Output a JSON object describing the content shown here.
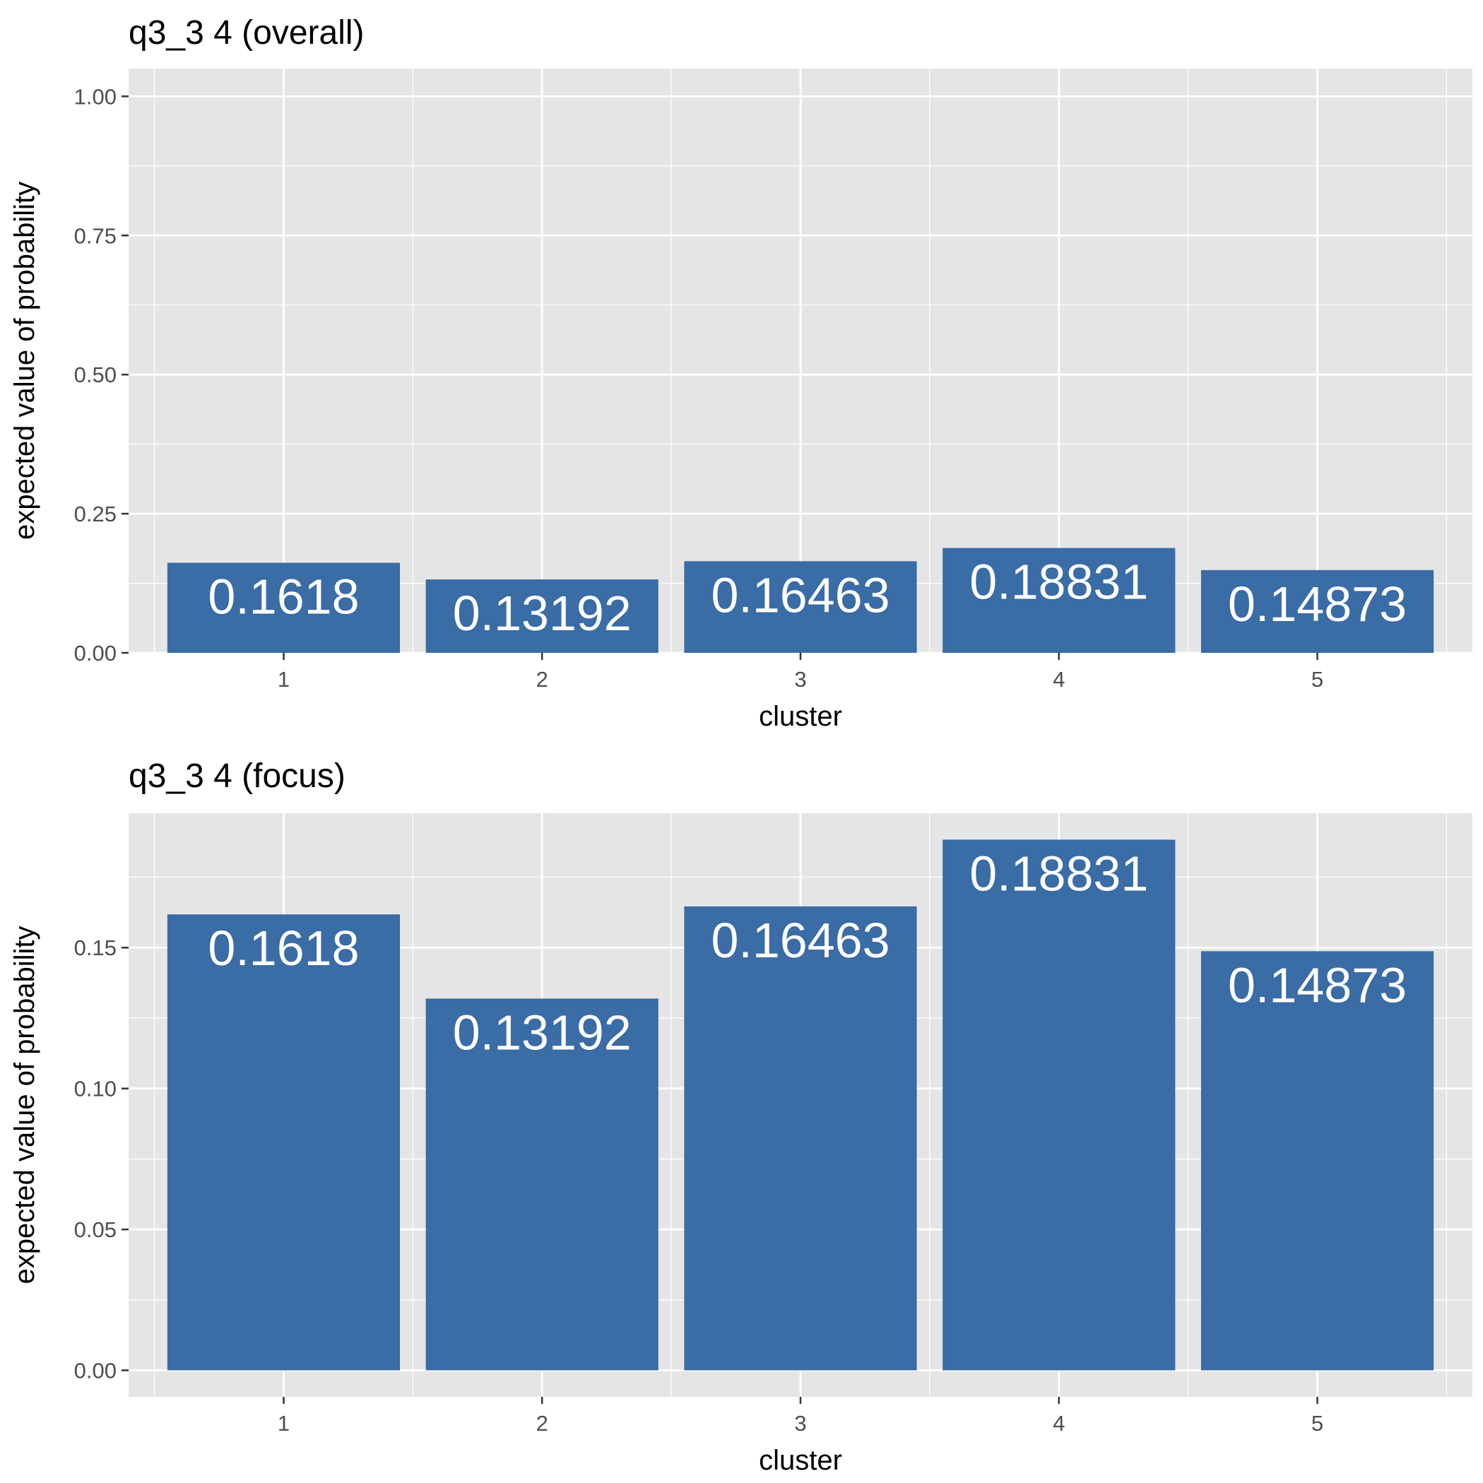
{
  "chart_data": [
    {
      "type": "bar",
      "title": "q3_3 4  (overall)",
      "xlabel": "cluster",
      "ylabel": "expected value of probability",
      "categories": [
        "1",
        "2",
        "3",
        "4",
        "5"
      ],
      "values": [
        0.1618,
        0.13192,
        0.16463,
        0.18831,
        0.14873
      ],
      "data_labels": [
        "0.1618",
        "0.13192",
        "0.16463",
        "0.18831",
        "0.14873"
      ],
      "ylim": [
        0,
        1.05
      ],
      "y_ticks": [
        0,
        0.25,
        0.5,
        0.75,
        1.0
      ],
      "y_tick_labels": [
        "0.00",
        "0.25",
        "0.50",
        "0.75",
        "1.00"
      ],
      "grid": true,
      "legend": "none",
      "bar_color": "#3a6ca5",
      "panel_color": "#e5e5e5",
      "grid_color": "#ffffff"
    },
    {
      "type": "bar",
      "title": "q3_3 4 (focus)",
      "xlabel": "cluster",
      "ylabel": "expected value of probability",
      "categories": [
        "1",
        "2",
        "3",
        "4",
        "5"
      ],
      "values": [
        0.1618,
        0.13192,
        0.16463,
        0.18831,
        0.14873
      ],
      "data_labels": [
        "0.1618",
        "0.13192",
        "0.16463",
        "0.18831",
        "0.14873"
      ],
      "ylim": [
        -0.0094,
        0.1977
      ],
      "y_ticks": [
        0,
        0.05,
        0.1,
        0.15
      ],
      "y_tick_labels": [
        "0.00",
        "0.05",
        "0.10",
        "0.15"
      ],
      "grid": true,
      "legend": "none",
      "bar_color": "#3a6ca5",
      "panel_color": "#e5e5e5",
      "grid_color": "#ffffff"
    }
  ]
}
